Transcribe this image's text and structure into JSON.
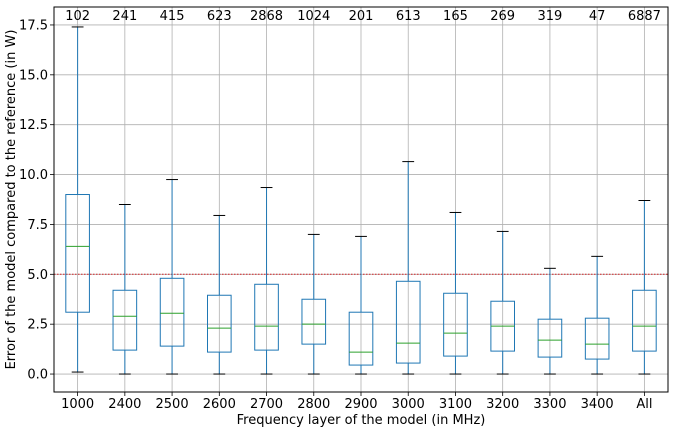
{
  "chart_data": {
    "type": "boxplot",
    "title": "",
    "xlabel": "Frequency layer of the model (in MHz)",
    "ylabel": "Error of the model compared to the reference (in W)",
    "ylim": [
      -0.9,
      18.4
    ],
    "yticks": [
      0.0,
      2.5,
      5.0,
      7.5,
      10.0,
      12.5,
      15.0,
      17.5
    ],
    "ytick_labels": [
      "0.0",
      "2.5",
      "5.0",
      "7.5",
      "10.0",
      "12.5",
      "15.0",
      "17.5"
    ],
    "grid": true,
    "reference_line": {
      "y": 5.0,
      "color": "#d62728",
      "style": "dotted"
    },
    "colors": {
      "box": "#1f77b4",
      "median": "#2ca02c",
      "highlight_label": "#ff0000"
    },
    "categories": [
      "1000",
      "2400",
      "2500",
      "2600",
      "2700",
      "2800",
      "2900",
      "3000",
      "3100",
      "3200",
      "3300",
      "3400",
      "All"
    ],
    "counts": [
      "102",
      "241",
      "415",
      "623",
      "2868",
      "1024",
      "201",
      "613",
      "165",
      "269",
      "319",
      "47",
      "6887"
    ],
    "boxes": [
      {
        "whislo": 0.1,
        "q1": 3.1,
        "med": 6.4,
        "q3": 9.0,
        "whishi": 17.4
      },
      {
        "whislo": 0.0,
        "q1": 1.2,
        "med": 2.9,
        "q3": 4.2,
        "whishi": 8.5
      },
      {
        "whislo": 0.0,
        "q1": 1.4,
        "med": 3.05,
        "q3": 4.8,
        "whishi": 9.75
      },
      {
        "whislo": 0.0,
        "q1": 1.1,
        "med": 2.3,
        "q3": 3.95,
        "whishi": 7.95
      },
      {
        "whislo": 0.0,
        "q1": 1.2,
        "med": 2.4,
        "q3": 4.5,
        "whishi": 9.35
      },
      {
        "whislo": 0.0,
        "q1": 1.5,
        "med": 2.5,
        "q3": 3.75,
        "whishi": 7.0
      },
      {
        "whislo": 0.0,
        "q1": 0.45,
        "med": 1.1,
        "q3": 3.1,
        "whishi": 6.9
      },
      {
        "whislo": 0.0,
        "q1": 0.55,
        "med": 1.55,
        "q3": 4.65,
        "whishi": 10.65
      },
      {
        "whislo": 0.0,
        "q1": 0.9,
        "med": 2.05,
        "q3": 4.05,
        "whishi": 8.1
      },
      {
        "whislo": 0.0,
        "q1": 1.15,
        "med": 2.4,
        "q3": 3.65,
        "whishi": 7.15
      },
      {
        "whislo": 0.0,
        "q1": 0.85,
        "med": 1.7,
        "q3": 2.75,
        "whishi": 5.3
      },
      {
        "whislo": 0.0,
        "q1": 0.75,
        "med": 1.5,
        "q3": 2.8,
        "whishi": 5.9
      },
      {
        "whislo": 0.0,
        "q1": 1.15,
        "med": 2.4,
        "q3": 4.2,
        "whishi": 8.7
      }
    ]
  }
}
